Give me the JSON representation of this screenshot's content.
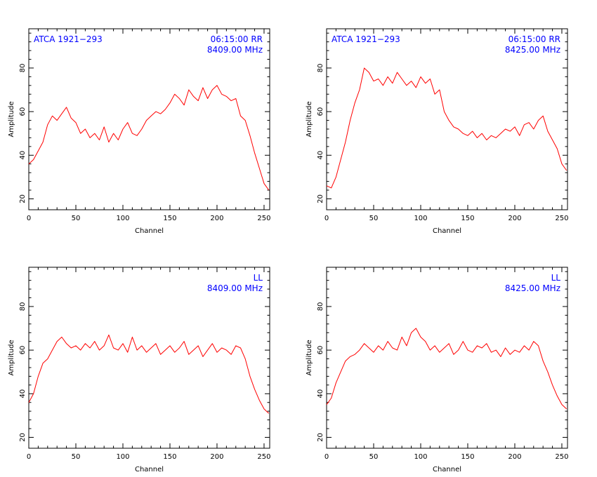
{
  "style": {
    "trace_color": "#ff0000",
    "annotation_color": "#0000ff",
    "axis_color": "#000000"
  },
  "chart_data": [
    {
      "type": "line",
      "xlabel": "Channel",
      "ylabel": "Amplitude",
      "xlim": [
        0,
        256
      ],
      "ylim": [
        15,
        98
      ],
      "xticks": [
        0,
        50,
        100,
        150,
        200,
        250
      ],
      "yticks": [
        20,
        40,
        60,
        80
      ],
      "annotation_left": "ATCA 1921−293",
      "annotation_right_1": "06:15:00 RR",
      "annotation_right_2": "8409.00 MHz",
      "series": [
        {
          "x": [
            0,
            5,
            10,
            15,
            20,
            25,
            30,
            35,
            40,
            45,
            50,
            55,
            60,
            65,
            70,
            75,
            80,
            85,
            90,
            95,
            100,
            105,
            110,
            115,
            120,
            125,
            130,
            135,
            140,
            145,
            150,
            155,
            160,
            165,
            170,
            175,
            180,
            185,
            190,
            195,
            200,
            205,
            210,
            215,
            220,
            225,
            230,
            235,
            240,
            245,
            250,
            255
          ],
          "y": [
            36,
            38,
            42,
            46,
            54,
            58,
            56,
            59,
            62,
            57,
            55,
            50,
            52,
            48,
            50,
            47,
            53,
            46,
            50,
            47,
            52,
            55,
            50,
            49,
            52,
            56,
            58,
            60,
            59,
            61,
            64,
            68,
            66,
            63,
            70,
            67,
            65,
            71,
            66,
            70,
            72,
            68,
            67,
            65,
            66,
            58,
            56,
            49,
            41,
            34,
            27,
            24
          ]
        }
      ]
    },
    {
      "type": "line",
      "xlabel": "Channel",
      "ylabel": "Amplitude",
      "xlim": [
        0,
        256
      ],
      "ylim": [
        15,
        98
      ],
      "xticks": [
        0,
        50,
        100,
        150,
        200,
        250
      ],
      "yticks": [
        20,
        40,
        60,
        80
      ],
      "annotation_left": "ATCA 1921−293",
      "annotation_right_1": "06:15:00 RR",
      "annotation_right_2": "8425.00 MHz",
      "series": [
        {
          "x": [
            0,
            5,
            10,
            15,
            20,
            25,
            30,
            35,
            40,
            45,
            50,
            55,
            60,
            65,
            70,
            75,
            80,
            85,
            90,
            95,
            100,
            105,
            110,
            115,
            120,
            125,
            130,
            135,
            140,
            145,
            150,
            155,
            160,
            165,
            170,
            175,
            180,
            185,
            190,
            195,
            200,
            205,
            210,
            215,
            220,
            225,
            230,
            235,
            240,
            245,
            250,
            255
          ],
          "y": [
            26,
            25,
            30,
            38,
            46,
            56,
            64,
            70,
            80,
            78,
            74,
            75,
            72,
            76,
            73,
            78,
            75,
            72,
            74,
            71,
            76,
            73,
            75,
            68,
            70,
            60,
            56,
            53,
            52,
            50,
            49,
            51,
            48,
            50,
            47,
            49,
            48,
            50,
            52,
            51,
            53,
            49,
            54,
            55,
            52,
            56,
            58,
            51,
            47,
            43,
            36,
            33
          ]
        }
      ]
    },
    {
      "type": "line",
      "xlabel": "Channel",
      "ylabel": "Amplitude",
      "xlim": [
        0,
        256
      ],
      "ylim": [
        15,
        98
      ],
      "xticks": [
        0,
        50,
        100,
        150,
        200,
        250
      ],
      "yticks": [
        20,
        40,
        60,
        80
      ],
      "annotation_left": "",
      "annotation_right_1": "LL",
      "annotation_right_2": "8409.00 MHz",
      "series": [
        {
          "x": [
            0,
            5,
            10,
            15,
            20,
            25,
            30,
            35,
            40,
            45,
            50,
            55,
            60,
            65,
            70,
            75,
            80,
            85,
            90,
            95,
            100,
            105,
            110,
            115,
            120,
            125,
            130,
            135,
            140,
            145,
            150,
            155,
            160,
            165,
            170,
            175,
            180,
            185,
            190,
            195,
            200,
            205,
            210,
            215,
            220,
            225,
            230,
            235,
            240,
            245,
            250,
            255
          ],
          "y": [
            36,
            40,
            48,
            54,
            56,
            60,
            64,
            66,
            63,
            61,
            62,
            60,
            63,
            61,
            64,
            60,
            62,
            67,
            61,
            60,
            63,
            59,
            66,
            60,
            62,
            59,
            61,
            63,
            58,
            60,
            62,
            59,
            61,
            64,
            58,
            60,
            62,
            57,
            60,
            63,
            59,
            61,
            60,
            58,
            62,
            61,
            56,
            48,
            42,
            37,
            33,
            31
          ]
        }
      ]
    },
    {
      "type": "line",
      "xlabel": "Channel",
      "ylabel": "Amplitude",
      "xlim": [
        0,
        256
      ],
      "ylim": [
        15,
        98
      ],
      "xticks": [
        0,
        50,
        100,
        150,
        200,
        250
      ],
      "yticks": [
        20,
        40,
        60,
        80
      ],
      "annotation_left": "",
      "annotation_right_1": "LL",
      "annotation_right_2": "8425.00 MHz",
      "series": [
        {
          "x": [
            0,
            5,
            10,
            15,
            20,
            25,
            30,
            35,
            40,
            45,
            50,
            55,
            60,
            65,
            70,
            75,
            80,
            85,
            90,
            95,
            100,
            105,
            110,
            115,
            120,
            125,
            130,
            135,
            140,
            145,
            150,
            155,
            160,
            165,
            170,
            175,
            180,
            185,
            190,
            195,
            200,
            205,
            210,
            215,
            220,
            225,
            230,
            235,
            240,
            245,
            250,
            255
          ],
          "y": [
            35,
            38,
            45,
            50,
            55,
            57,
            58,
            60,
            63,
            61,
            59,
            62,
            60,
            64,
            61,
            60,
            66,
            62,
            68,
            70,
            66,
            64,
            60,
            62,
            59,
            61,
            63,
            58,
            60,
            64,
            60,
            59,
            62,
            61,
            63,
            59,
            60,
            57,
            61,
            58,
            60,
            59,
            62,
            60,
            64,
            62,
            55,
            50,
            44,
            39,
            35,
            33
          ]
        }
      ]
    }
  ]
}
